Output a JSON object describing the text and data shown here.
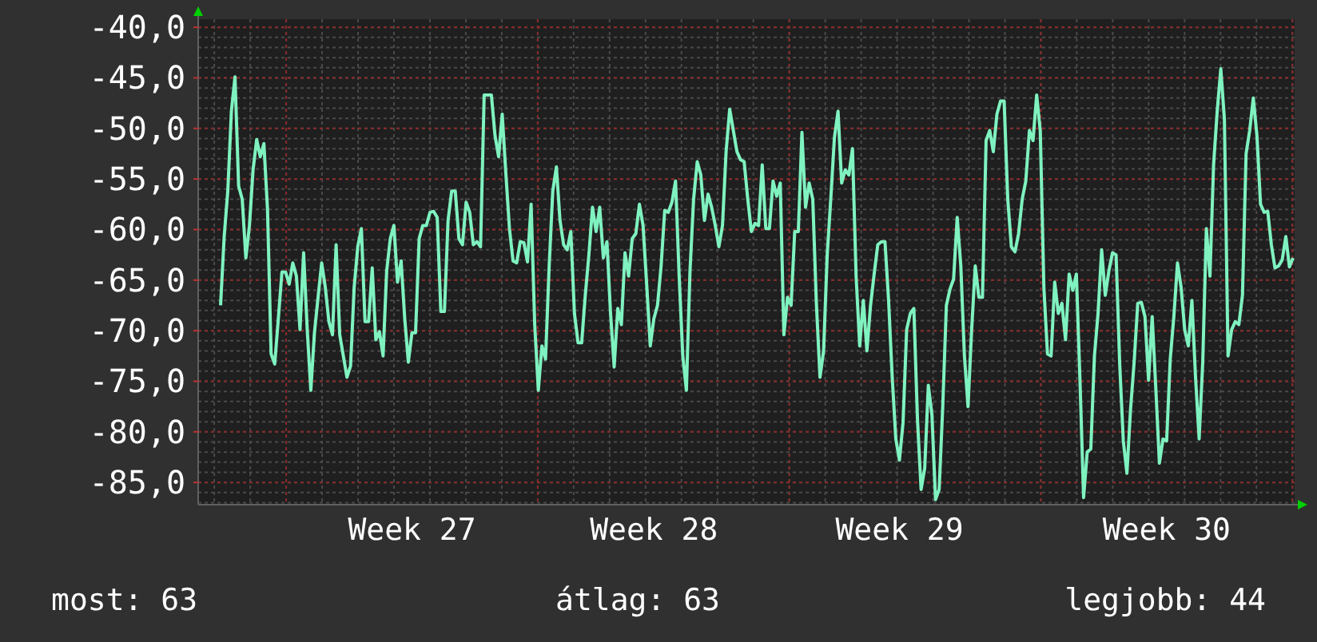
{
  "chart_data": {
    "type": "line",
    "ylim": [
      -87.2,
      -39.2
    ],
    "categories": [
      null,
      null,
      null,
      null,
      null,
      null,
      null,
      null,
      null,
      null,
      null,
      null,
      null,
      null,
      null,
      null,
      null,
      null,
      null,
      null,
      null,
      null,
      null,
      null,
      null,
      null,
      null,
      null,
      null,
      null,
      null,
      null,
      null,
      null,
      null,
      null,
      null,
      null,
      null,
      null,
      null,
      null,
      null,
      null,
      null,
      null,
      null,
      null,
      null,
      null,
      null,
      null,
      null,
      "Week 27",
      null,
      null,
      null,
      null,
      null,
      null,
      null,
      null,
      null,
      null,
      null,
      null,
      null,
      null,
      null,
      null,
      null,
      null,
      null,
      null,
      null,
      null,
      null,
      null,
      null,
      null,
      null,
      null,
      null,
      null,
      null,
      null,
      null,
      null,
      null,
      null,
      null,
      null,
      null,
      null,
      null,
      null,
      null,
      null,
      null,
      null,
      null,
      null,
      null,
      null,
      null,
      null,
      null,
      null,
      null,
      null,
      null,
      null,
      null,
      null,
      null,
      null,
      null,
      null,
      null,
      null,
      "Week 28",
      null,
      null,
      null,
      null,
      null,
      null,
      null,
      null,
      null,
      null,
      null,
      null,
      null,
      null,
      null,
      null,
      null,
      null,
      null,
      null,
      null,
      null,
      null,
      null,
      null,
      null,
      null,
      null,
      null,
      null,
      null,
      null,
      null,
      null,
      null,
      null,
      null,
      null,
      null,
      null,
      null,
      null,
      null,
      null,
      null,
      null,
      null,
      null,
      null,
      null,
      null,
      null,
      null,
      null,
      null,
      null,
      null,
      null,
      null,
      null,
      null,
      null,
      null,
      null,
      null,
      null,
      null,
      "Week 29",
      null,
      null,
      null,
      null,
      null,
      null,
      null,
      null,
      null,
      null,
      null,
      null,
      null,
      null,
      null,
      null,
      null,
      null,
      null,
      null,
      null,
      null,
      null,
      null,
      null,
      null,
      null,
      null,
      null,
      null,
      null,
      null,
      null,
      null,
      null,
      null,
      null,
      null,
      null,
      null,
      null,
      null,
      null,
      null,
      null,
      null,
      null,
      null,
      null,
      null,
      null,
      null,
      null,
      null,
      null,
      null,
      null,
      null,
      null,
      null,
      null,
      null,
      null,
      null,
      null,
      null,
      null,
      null,
      null,
      null,
      null,
      null,
      null,
      "Week 30",
      null,
      null,
      null,
      null,
      null,
      null,
      null,
      null,
      null,
      null,
      null,
      null,
      null,
      null,
      null,
      null,
      null,
      null,
      null,
      null,
      null,
      null,
      null,
      null,
      null,
      null,
      null,
      null,
      null,
      null,
      null,
      null,
      null,
      null,
      null
    ],
    "yticks": [
      {
        "value": -40,
        "label": "-40,0"
      },
      {
        "value": -45,
        "label": "-45,0"
      },
      {
        "value": -50,
        "label": "-50,0"
      },
      {
        "value": -55,
        "label": "-55,0"
      },
      {
        "value": -60,
        "label": "-60,0"
      },
      {
        "value": -65,
        "label": "-65,0"
      },
      {
        "value": -70,
        "label": "-70,0"
      },
      {
        "value": -75,
        "label": "-75,0"
      },
      {
        "value": -80,
        "label": "-80,0"
      },
      {
        "value": -85,
        "label": "-85,0"
      }
    ],
    "grid": true,
    "marker": "none",
    "line_style": "solid",
    "annotations": [
      "most: 63",
      "átlag: 63",
      "legjobb: 44"
    ],
    "series": [
      {
        "color": "#7ff2c0",
        "values": [
          -67.5,
          -60.7,
          -56.2,
          -48.3,
          -44.9,
          -55.7,
          -57,
          -62.8,
          -59.6,
          -54.1,
          -51.1,
          -52.8,
          -51.5,
          -58,
          -72.3,
          -73.3,
          -68.8,
          -64.2,
          -64.2,
          -65.4,
          -63.3,
          -64.6,
          -69.9,
          -62.3,
          -69.9,
          -75.9,
          -70.2,
          -66.7,
          -63.3,
          -65.7,
          -69.1,
          -70.4,
          -61.5,
          -70.4,
          -72.5,
          -74.6,
          -73.5,
          -65.7,
          -61.7,
          -59.9,
          -69.1,
          -69.1,
          -63.8,
          -70.9,
          -70.1,
          -72.5,
          -64.1,
          -60.9,
          -59.6,
          -65.2,
          -63.1,
          -68.8,
          -73.1,
          -70.2,
          -70.2,
          -60.9,
          -59.6,
          -59.6,
          -58.3,
          -58.2,
          -58.8,
          -68.1,
          -68.1,
          -59.1,
          -56.2,
          -56.2,
          -60.9,
          -61.5,
          -57.3,
          -58.3,
          -61.5,
          -61.2,
          -61.7,
          -46.7,
          -46.7,
          -46.7,
          -50.7,
          -52.8,
          -48.6,
          -54.4,
          -59.9,
          -63.1,
          -63.3,
          -61.2,
          -61.3,
          -63.2,
          -57.5,
          -69.4,
          -75.9,
          -71.5,
          -72.8,
          -63.6,
          -56.2,
          -53.8,
          -59.1,
          -61.5,
          -62,
          -60.2,
          -68.3,
          -71.2,
          -71.2,
          -66.5,
          -62.5,
          -57.8,
          -60.2,
          -57.8,
          -62.8,
          -61.2,
          -68.3,
          -73.6,
          -67.8,
          -69.4,
          -62.3,
          -64.6,
          -60.9,
          -60.4,
          -57.5,
          -59.6,
          -65.4,
          -71.5,
          -68.8,
          -67.5,
          -63.6,
          -58.1,
          -58.3,
          -57.3,
          -55.2,
          -64.6,
          -72.5,
          -75.9,
          -64.1,
          -57,
          -53.3,
          -54.6,
          -59.1,
          -56.5,
          -57.8,
          -59.6,
          -61.7,
          -59.6,
          -52.3,
          -48.1,
          -50.2,
          -52.3,
          -53.1,
          -53.3,
          -57,
          -60.2,
          -59.4,
          -59.6,
          -53.6,
          -59.9,
          -59.9,
          -55.2,
          -56.7,
          -55.4,
          -70.4,
          -66.7,
          -67.5,
          -60.2,
          -60.2,
          -50.4,
          -57.8,
          -55.4,
          -57,
          -67.3,
          -74.6,
          -72,
          -62.5,
          -56.9,
          -50.9,
          -48.3,
          -55.4,
          -54.1,
          -54.6,
          -52,
          -64.6,
          -71.5,
          -67,
          -72,
          -67.5,
          -64.4,
          -61.5,
          -61.2,
          -61.2,
          -67,
          -74.6,
          -80.7,
          -82.8,
          -79.1,
          -69.9,
          -68.3,
          -67.8,
          -78.8,
          -85.7,
          -83.6,
          -75.4,
          -78.3,
          -86.7,
          -85.7,
          -77.5,
          -67.5,
          -65.9,
          -64.9,
          -58.8,
          -63.6,
          -72.5,
          -77.5,
          -69.9,
          -63.6,
          -66.7,
          -66.7,
          -51.2,
          -50.2,
          -52.3,
          -48.6,
          -47.3,
          -47.3,
          -57,
          -61.7,
          -62.2,
          -60.4,
          -57,
          -55.2,
          -50.2,
          -51.2,
          -46.7,
          -50.2,
          -65.7,
          -72.3,
          -72.5,
          -65.2,
          -68.3,
          -67.3,
          -70.9,
          -64.4,
          -66,
          -64.4,
          -74.9,
          -86.5,
          -82,
          -81.7,
          -72.5,
          -68.3,
          -62,
          -66.5,
          -64.1,
          -62.3,
          -62.5,
          -73.3,
          -80.9,
          -84.1,
          -77.8,
          -73.1,
          -67.3,
          -67.2,
          -68.6,
          -74.9,
          -68.6,
          -75.7,
          -83.1,
          -80.7,
          -80.9,
          -72.8,
          -68.6,
          -63.3,
          -65.7,
          -69.9,
          -71.5,
          -67,
          -74.6,
          -80.7,
          -73.1,
          -59.9,
          -64.6,
          -53.6,
          -48.3,
          -44.1,
          -49.1,
          -72.5,
          -69.9,
          -69.1,
          -69.4,
          -66.5,
          -52.5,
          -50.2,
          -47,
          -50.7,
          -57.5,
          -58.3,
          -58.2,
          -61.5,
          -63.8,
          -63.6,
          -63,
          -60.7,
          -63.7,
          -62.8
        ]
      }
    ]
  }
}
